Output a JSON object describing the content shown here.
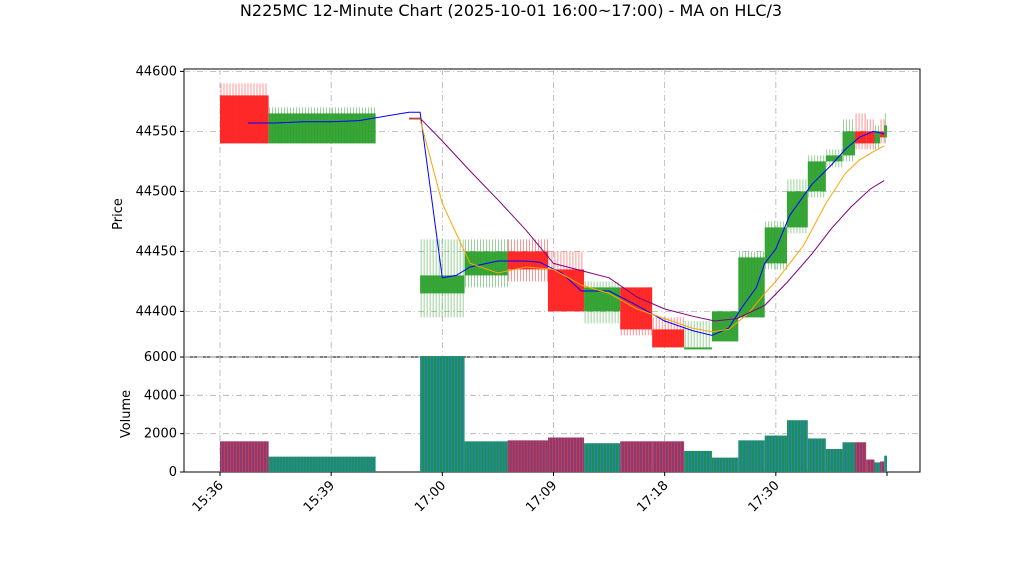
{
  "chart_data": {
    "type": "candlestick",
    "title": "N225MC 12-Minute Chart (2025-10-01 16:00~17:00) - MA on HLC/3",
    "price_panel": {
      "ylabel": "Price",
      "ylim": [
        44362,
        44602
      ],
      "yticks": [
        44400,
        44450,
        44500,
        44550,
        44600
      ],
      "grid": true
    },
    "volume_panel": {
      "ylabel": "Volume",
      "ylim": [
        0,
        6000
      ],
      "yticks": [
        0,
        2000,
        4000,
        6000
      ],
      "grid": true
    },
    "x_ticks": [
      {
        "x": 0,
        "label": "15:36"
      },
      {
        "x": 4,
        "label": "15:39"
      },
      {
        "x": 8,
        "label": "17:00"
      },
      {
        "x": 12,
        "label": "17:09"
      },
      {
        "x": 16,
        "label": "17:18"
      },
      {
        "x": 20,
        "label": "17:30"
      }
    ],
    "candles": [
      {
        "x": 0.0,
        "w": 1.75,
        "open": 44580,
        "close": 44540,
        "high": 44590,
        "low": 44540,
        "volume": 1600
      },
      {
        "x": 1.75,
        "w": 3.85,
        "open": 44540,
        "close": 44565,
        "high": 44570,
        "low": 44540,
        "volume": 800
      },
      {
        "x": 7.2,
        "w": 1.6,
        "open": 44415,
        "close": 44430,
        "high": 44460,
        "low": 44395,
        "volume": 6050
      },
      {
        "x": 8.8,
        "w": 1.55,
        "open": 44430,
        "close": 44450,
        "high": 44460,
        "low": 44420,
        "volume": 1600
      },
      {
        "x": 10.35,
        "w": 1.45,
        "open": 44450,
        "close": 44435,
        "high": 44460,
        "low": 44425,
        "volume": 1650
      },
      {
        "x": 11.8,
        "w": 1.3,
        "open": 44435,
        "close": 44400,
        "high": 44450,
        "low": 44400,
        "volume": 1800
      },
      {
        "x": 13.1,
        "w": 1.3,
        "open": 44400,
        "close": 44420,
        "high": 44425,
        "low": 44390,
        "volume": 1500
      },
      {
        "x": 14.4,
        "w": 1.15,
        "open": 44420,
        "close": 44385,
        "high": 44420,
        "low": 44380,
        "volume": 1600
      },
      {
        "x": 15.55,
        "w": 1.15,
        "open": 44385,
        "close": 44370,
        "high": 44395,
        "low": 44370,
        "volume": 1600
      },
      {
        "x": 16.7,
        "w": 1.0,
        "open": 44370,
        "close": 44370,
        "high": 44392,
        "low": 44370,
        "volume": 1100
      },
      {
        "x": 17.7,
        "w": 0.95,
        "open": 44375,
        "close": 44400,
        "high": 44400,
        "low": 44375,
        "volume": 750
      },
      {
        "x": 18.65,
        "w": 0.95,
        "open": 44395,
        "close": 44445,
        "high": 44450,
        "low": 44395,
        "volume": 1650
      },
      {
        "x": 19.6,
        "w": 0.8,
        "open": 44440,
        "close": 44470,
        "high": 44475,
        "low": 44435,
        "volume": 1900
      },
      {
        "x": 20.4,
        "w": 0.75,
        "open": 44470,
        "close": 44500,
        "high": 44510,
        "low": 44465,
        "volume": 2700
      },
      {
        "x": 21.15,
        "w": 0.65,
        "open": 44500,
        "close": 44525,
        "high": 44530,
        "low": 44495,
        "volume": 1750
      },
      {
        "x": 21.8,
        "w": 0.6,
        "open": 44525,
        "close": 44530,
        "high": 44535,
        "low": 44520,
        "volume": 1200
      },
      {
        "x": 22.4,
        "w": 0.45,
        "open": 44530,
        "close": 44550,
        "high": 44560,
        "low": 44525,
        "volume": 1550
      },
      {
        "x": 22.85,
        "w": 0.4,
        "open": 44550,
        "close": 44540,
        "high": 44565,
        "low": 44535,
        "volume": 1550
      },
      {
        "x": 23.25,
        "w": 0.3,
        "open": 44550,
        "close": 44540,
        "high": 44560,
        "low": 44535,
        "volume": 650
      },
      {
        "x": 23.55,
        "w": 0.2,
        "open": 44540,
        "close": 44550,
        "high": 44555,
        "low": 44535,
        "volume": 500
      },
      {
        "x": 23.75,
        "w": 0.15,
        "open": 44550,
        "close": 44545,
        "high": 44560,
        "low": 44540,
        "volume": 550
      },
      {
        "x": 23.9,
        "w": 0.1,
        "open": 44545,
        "close": 44555,
        "high": 44565,
        "low": 44540,
        "volume": 850
      }
    ],
    "moving_averages": [
      {
        "color": "#0000ff",
        "points": [
          [
            1,
            44557
          ],
          [
            2,
            44557
          ],
          [
            3,
            44558
          ],
          [
            4,
            44558
          ],
          [
            5,
            44559
          ],
          [
            6.8,
            44566
          ],
          [
            7.2,
            44566
          ],
          [
            8,
            44428
          ],
          [
            8.5,
            44430
          ],
          [
            9,
            44437
          ],
          [
            10,
            44442
          ],
          [
            11,
            44442
          ],
          [
            11.5,
            44441
          ],
          [
            12.3,
            44432
          ],
          [
            13,
            44417
          ],
          [
            14,
            44417
          ],
          [
            15,
            44405
          ],
          [
            16,
            44392
          ],
          [
            17,
            44384
          ],
          [
            17.7,
            44380
          ],
          [
            18.3,
            44386
          ],
          [
            18.8,
            44404
          ],
          [
            19.3,
            44420
          ],
          [
            19.6,
            44440
          ],
          [
            20,
            44452
          ],
          [
            20.5,
            44480
          ],
          [
            21.3,
            44506
          ],
          [
            22,
            44522
          ],
          [
            22.5,
            44535
          ],
          [
            23,
            44545
          ],
          [
            23.5,
            44550
          ],
          [
            23.9,
            44548
          ]
        ]
      },
      {
        "color": "#ffa500",
        "points": [
          [
            6.8,
            44560
          ],
          [
            7.2,
            44560
          ],
          [
            8,
            44490
          ],
          [
            9,
            44440
          ],
          [
            10,
            44432
          ],
          [
            11,
            44437
          ],
          [
            12,
            44435
          ],
          [
            13,
            44422
          ],
          [
            14,
            44415
          ],
          [
            15,
            44402
          ],
          [
            16,
            44394
          ],
          [
            17,
            44386
          ],
          [
            17.7,
            44383
          ],
          [
            18.3,
            44385
          ],
          [
            19,
            44398
          ],
          [
            19.6,
            44415
          ],
          [
            20,
            44425
          ],
          [
            21,
            44455
          ],
          [
            21.8,
            44490
          ],
          [
            22.5,
            44515
          ],
          [
            23,
            44526
          ],
          [
            23.5,
            44533
          ],
          [
            23.9,
            44538
          ]
        ]
      },
      {
        "color": "#800080",
        "points": [
          [
            6.8,
            44561
          ],
          [
            7.2,
            44561
          ],
          [
            8,
            44542
          ],
          [
            9,
            44517
          ],
          [
            10,
            44493
          ],
          [
            11,
            44468
          ],
          [
            12,
            44440
          ],
          [
            13,
            44434
          ],
          [
            14,
            44428
          ],
          [
            15,
            44412
          ],
          [
            16,
            44402
          ],
          [
            17,
            44396
          ],
          [
            17.8,
            44392
          ],
          [
            18.6,
            44394
          ],
          [
            19.6,
            44405
          ],
          [
            20.4,
            44424
          ],
          [
            21.3,
            44448
          ],
          [
            22,
            44469
          ],
          [
            22.7,
            44487
          ],
          [
            23.4,
            44502
          ],
          [
            23.9,
            44509
          ]
        ]
      }
    ]
  }
}
